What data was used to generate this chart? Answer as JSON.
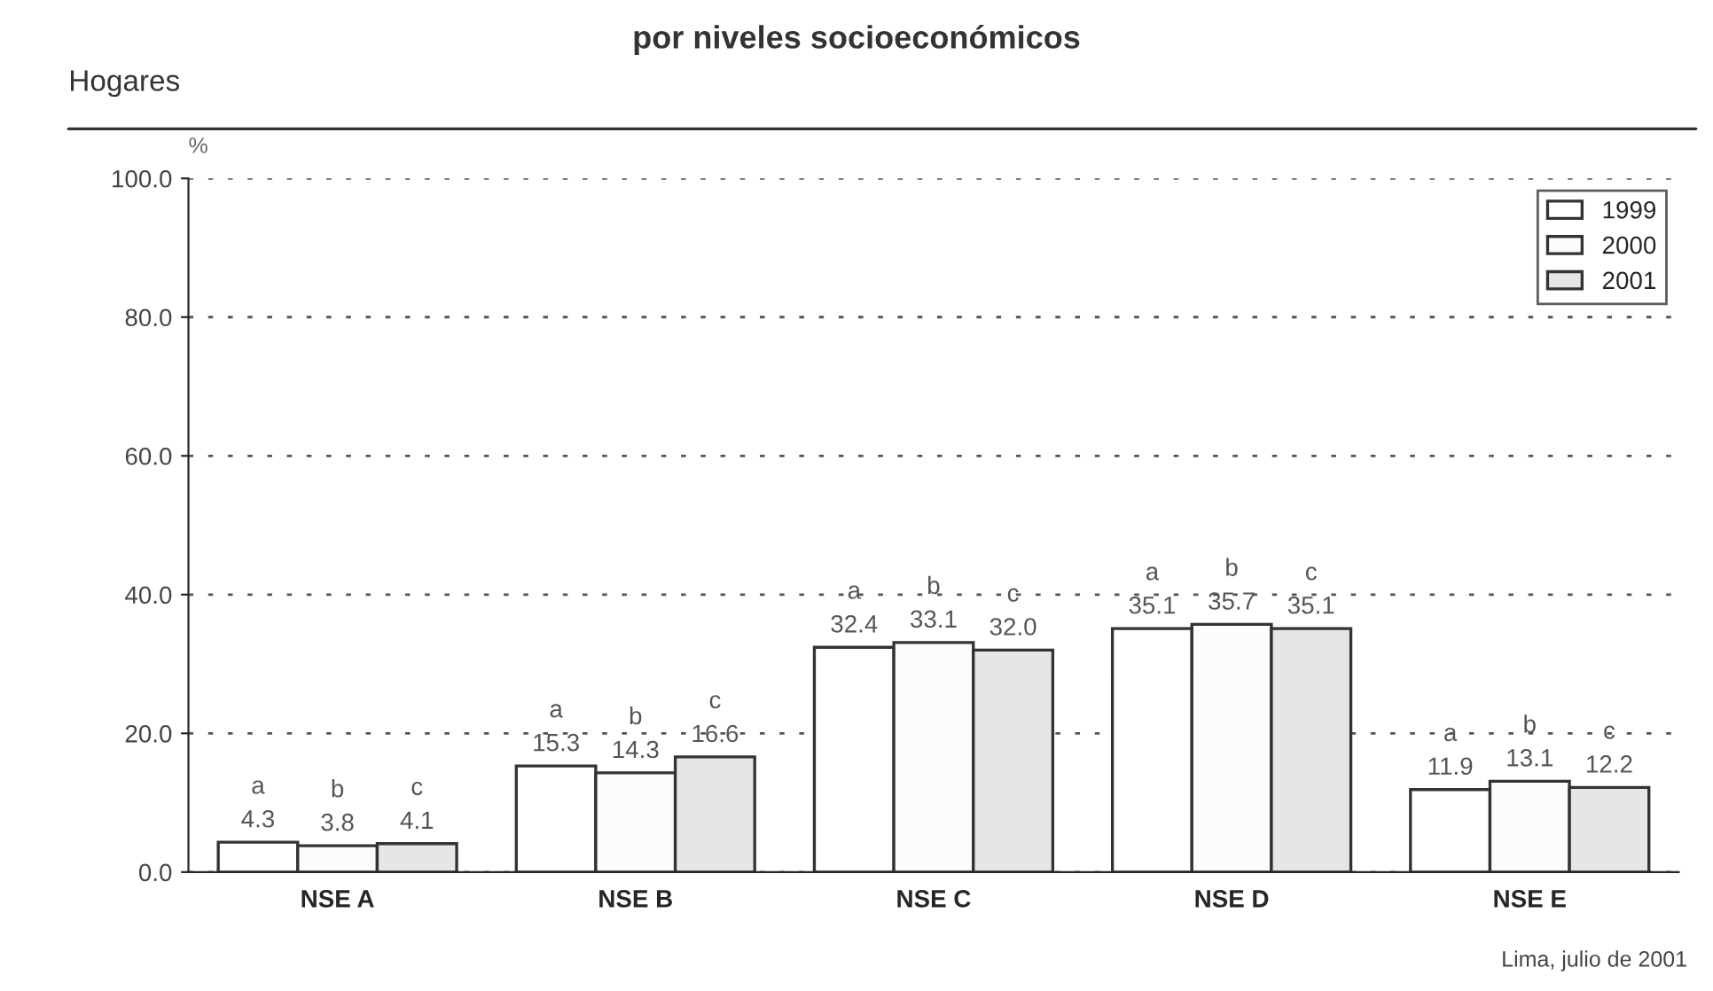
{
  "chart_data": {
    "type": "bar",
    "title": "por niveles socioeconómicos",
    "subtitle": "Hogares",
    "ylabel": "%",
    "categories": [
      "NSE A",
      "NSE B",
      "NSE C",
      "NSE D",
      "NSE E"
    ],
    "series": [
      {
        "name": "1999",
        "color": "#ffffff",
        "values": [
          4.3,
          15.3,
          32.4,
          35.1,
          11.9
        ],
        "value_labels": [
          "a\n4.3",
          "a\n15.3",
          "a\n32.4",
          "a\n35.1",
          "a\n11.9"
        ]
      },
      {
        "name": "2000",
        "color": "#fcfcfc",
        "values": [
          3.8,
          14.3,
          33.1,
          35.7,
          13.1
        ],
        "value_labels": [
          "b\n3.8",
          "b\n14.3",
          "b\n33.1",
          "b\n35.7",
          "b\n13.1"
        ]
      },
      {
        "name": "2001",
        "color": "#e6e6e6",
        "values": [
          4.1,
          16.6,
          32.0,
          35.1,
          12.2
        ],
        "value_labels": [
          "c\n4.1",
          "c\n16.6",
          "c\n32.0",
          "c\n35.1",
          "c\n12.2"
        ]
      }
    ],
    "ylim": [
      0,
      100
    ],
    "yticks": [
      {
        "value": 0,
        "label": "0.0"
      },
      {
        "value": 20,
        "label": "20.0"
      },
      {
        "value": 40,
        "label": "40.0"
      },
      {
        "value": 60,
        "label": "60.0"
      },
      {
        "value": 80,
        "label": "80.0"
      },
      {
        "value": 100,
        "label": "100.0"
      }
    ],
    "grid": "y",
    "legend": "top right",
    "annotations": [
      "Lima, julio de 2001"
    ]
  }
}
